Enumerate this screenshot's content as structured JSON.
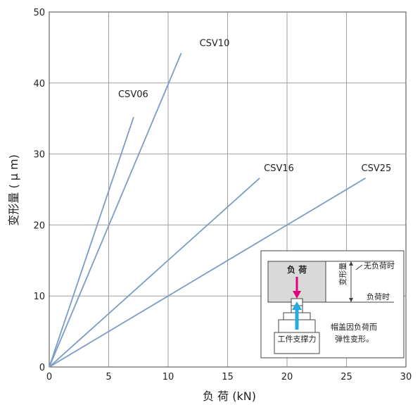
{
  "chart_data": {
    "type": "line",
    "xlabel": "负 荷 (kN)",
    "ylabel": "变形量 ( μ m)",
    "xlim": [
      0,
      30
    ],
    "ylim": [
      0,
      50
    ],
    "x_ticks": [
      "0",
      "5",
      "10",
      "15",
      "20",
      "25",
      "30"
    ],
    "y_ticks": [
      "0",
      "10",
      "20",
      "30",
      "40",
      "50"
    ],
    "grid": true,
    "series": [
      {
        "name": "CSV06",
        "x": [
          0,
          7.1
        ],
        "y": [
          0,
          35.2
        ]
      },
      {
        "name": "CSV10",
        "x": [
          0,
          11.1
        ],
        "y": [
          0,
          44.2
        ]
      },
      {
        "name": "CSV16",
        "x": [
          0,
          17.7
        ],
        "y": [
          0,
          26.6
        ]
      },
      {
        "name": "CSV25",
        "x": [
          0,
          26.6
        ],
        "y": [
          0,
          26.6
        ]
      }
    ],
    "colors": {
      "line": "#7a9cc6",
      "grid": "#a0a0a0",
      "axis": "#555555",
      "frame": "#666666"
    }
  },
  "inset": {
    "load_label": "负 荷",
    "deformation_label": "变形量",
    "no_load_label": "无负荷时",
    "under_load_label": "负荷时",
    "workpiece_force_label": "工件支撑力",
    "cap_note_line1": "帽盖因负荷而",
    "cap_note_line2": "弹性变形。",
    "colors": {
      "load_arrow": "#e2007a",
      "support_arrow": "#27aae1",
      "load_block": "#d9d9d9"
    }
  }
}
